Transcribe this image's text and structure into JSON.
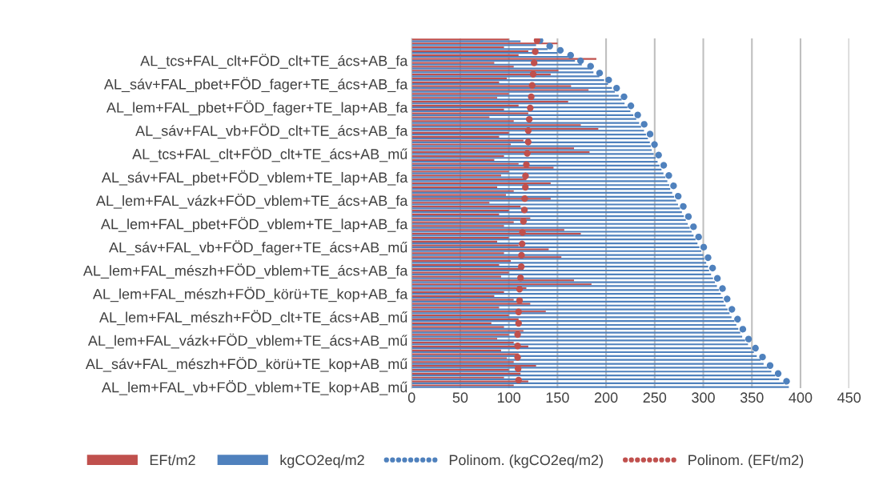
{
  "chart_data": {
    "type": "bar",
    "orientation": "horizontal",
    "categories": [
      null,
      null,
      null,
      null,
      null,
      "AL_tcs+FAL_clt+FÖD_clt+TE_ács+AB_fa",
      null,
      null,
      null,
      null,
      null,
      "AL_sáv+FAL_pbet+FÖD_fager+TE_ács+AB_fa",
      null,
      null,
      null,
      null,
      null,
      "AL_lem+FAL_pbet+FÖD_fager+TE_lap+AB_fa",
      null,
      null,
      null,
      null,
      null,
      "AL_sáv+FAL_vb+FÖD_clt+TE_ács+AB_fa",
      null,
      null,
      null,
      null,
      null,
      "AL_tcs+FAL_clt+FÖD_clt+TE_ács+AB_mű",
      null,
      null,
      null,
      null,
      null,
      "AL_sáv+FAL_pbet+FÖD_vblem+TE_lap+AB_fa",
      null,
      null,
      null,
      null,
      null,
      "AL_lem+FAL_vázk+FÖD_vblem+TE_ács+AB_fa",
      null,
      null,
      null,
      null,
      null,
      "AL_lem+FAL_pbet+FÖD_vblem+TE_lap+AB_fa",
      null,
      null,
      null,
      null,
      null,
      "AL_sáv+FAL_vb+FÖD_fager+TE_ács+AB_mű",
      null,
      null,
      null,
      null,
      null,
      "AL_lem+FAL_mészh+FÖD_vblem+TE_ács+AB_fa",
      null,
      null,
      null,
      null,
      null,
      "AL_lem+FAL_mészh+FÖD_körü+TE_kop+AB_fa",
      null,
      null,
      null,
      null,
      null,
      "AL_lem+FAL_mészh+FÖD_clt+TE_ács+AB_mű",
      null,
      null,
      null,
      null,
      null,
      "AL_lem+FAL_vázk+FÖD_vblem+TE_ács+AB_mű",
      null,
      null,
      null,
      null,
      null,
      "AL_sáv+FAL_mészh+FÖD_körü+TE_kop+AB_mű",
      null,
      null,
      null,
      null,
      null,
      "AL_lem+FAL_vb+FÖD_vblem+TE_kop+AB_mű"
    ],
    "series": [
      {
        "name": "EFt/m2",
        "color": "#c0504d",
        "values": [
          100,
          150,
          95,
          120,
          110,
          190,
          85,
          105,
          151,
          143,
          98,
          90,
          164,
          182,
          100,
          88,
          161,
          110,
          95,
          120,
          80,
          105,
          174,
          192,
          100,
          90,
          115,
          102,
          167,
          183,
          95,
          85,
          110,
          146,
          100,
          92,
          118,
          143,
          88,
          105,
          97,
          143,
          80,
          112,
          100,
          90,
          122,
          105,
          95,
          157,
          174,
          100,
          88,
          110,
          141,
          95,
          154,
          102,
          90,
          115,
          100,
          92,
          167,
          185,
          118,
          95,
          85,
          105,
          122,
          90,
          138,
          100,
          110,
          82,
          95,
          115,
          100,
          88,
          105,
          120,
          92,
          110,
          98,
          105,
          128,
          100,
          112,
          95,
          120,
          105
        ]
      },
      {
        "name": "kgCO2eq/m2",
        "color": "#4f81bd",
        "values": [
          112,
          128,
          140,
          150,
          161,
          168,
          175,
          183,
          187,
          193,
          198,
          202,
          206,
          209,
          213,
          216,
          219,
          222,
          225,
          228,
          231,
          234,
          236,
          239,
          241,
          243,
          245,
          246,
          247,
          249,
          251,
          253,
          255,
          257,
          259,
          261,
          263,
          265,
          266,
          268,
          270,
          272,
          274,
          276,
          278,
          280,
          282,
          284,
          286,
          288,
          290,
          292,
          294,
          296,
          298,
          300,
          301,
          303,
          305,
          306,
          308,
          310,
          312,
          314,
          316,
          318,
          320,
          321,
          323,
          325,
          327,
          329,
          332,
          334,
          336,
          338,
          340,
          343,
          346,
          349,
          352,
          355,
          359,
          362,
          366,
          370,
          374,
          378,
          383,
          388
        ]
      },
      {
        "name": "Polinom. (kgCO2eq/m2)",
        "type": "line",
        "line_style": "dotted",
        "color": "#4f81bd",
        "values": [
          132,
          137,
          148,
          157,
          165,
          172,
          179,
          187,
          191,
          197,
          202,
          206,
          210,
          213,
          217,
          220,
          223,
          226,
          229,
          232,
          235,
          238,
          240,
          243,
          245,
          247,
          249,
          250,
          251,
          253,
          255,
          257,
          259,
          261,
          263,
          265,
          267,
          269,
          270,
          272,
          274,
          276,
          278,
          280,
          282,
          284,
          286,
          288,
          290,
          292,
          294,
          296,
          298,
          300,
          302,
          304,
          305,
          307,
          309,
          310,
          312,
          314,
          316,
          318,
          320,
          322,
          324,
          325,
          327,
          329,
          331,
          333,
          336,
          338,
          340,
          342,
          344,
          347,
          350,
          353,
          356,
          359,
          363,
          366,
          370,
          374,
          378,
          382,
          387,
          392
        ]
      },
      {
        "name": "Polinom. (EFt/m2)",
        "type": "line",
        "line_style": "dotted",
        "color": "#c0504d",
        "values": [
          129,
          129,
          128,
          127,
          127,
          126,
          126,
          126,
          125,
          125,
          124,
          124,
          124,
          123,
          123,
          123,
          122,
          122,
          122,
          121,
          121,
          121,
          121,
          120,
          120,
          120,
          120,
          119,
          119,
          119,
          118,
          118,
          118,
          118,
          118,
          117,
          117,
          117,
          117,
          117,
          117,
          116,
          116,
          116,
          116,
          115,
          115,
          115,
          115,
          114,
          114,
          114,
          114,
          113,
          113,
          113,
          113,
          113,
          113,
          112,
          112,
          112,
          112,
          111,
          111,
          111,
          111,
          111,
          110,
          110,
          110,
          110,
          110,
          110,
          110,
          109,
          109,
          109,
          109,
          109,
          109,
          109,
          109,
          109,
          109,
          110,
          110,
          110,
          110,
          110
        ]
      }
    ],
    "xlim": [
      0,
      450
    ],
    "xticks": [
      0,
      50,
      100,
      150,
      200,
      250,
      300,
      350,
      400,
      450
    ],
    "grid": "x",
    "legend": "bottom"
  }
}
